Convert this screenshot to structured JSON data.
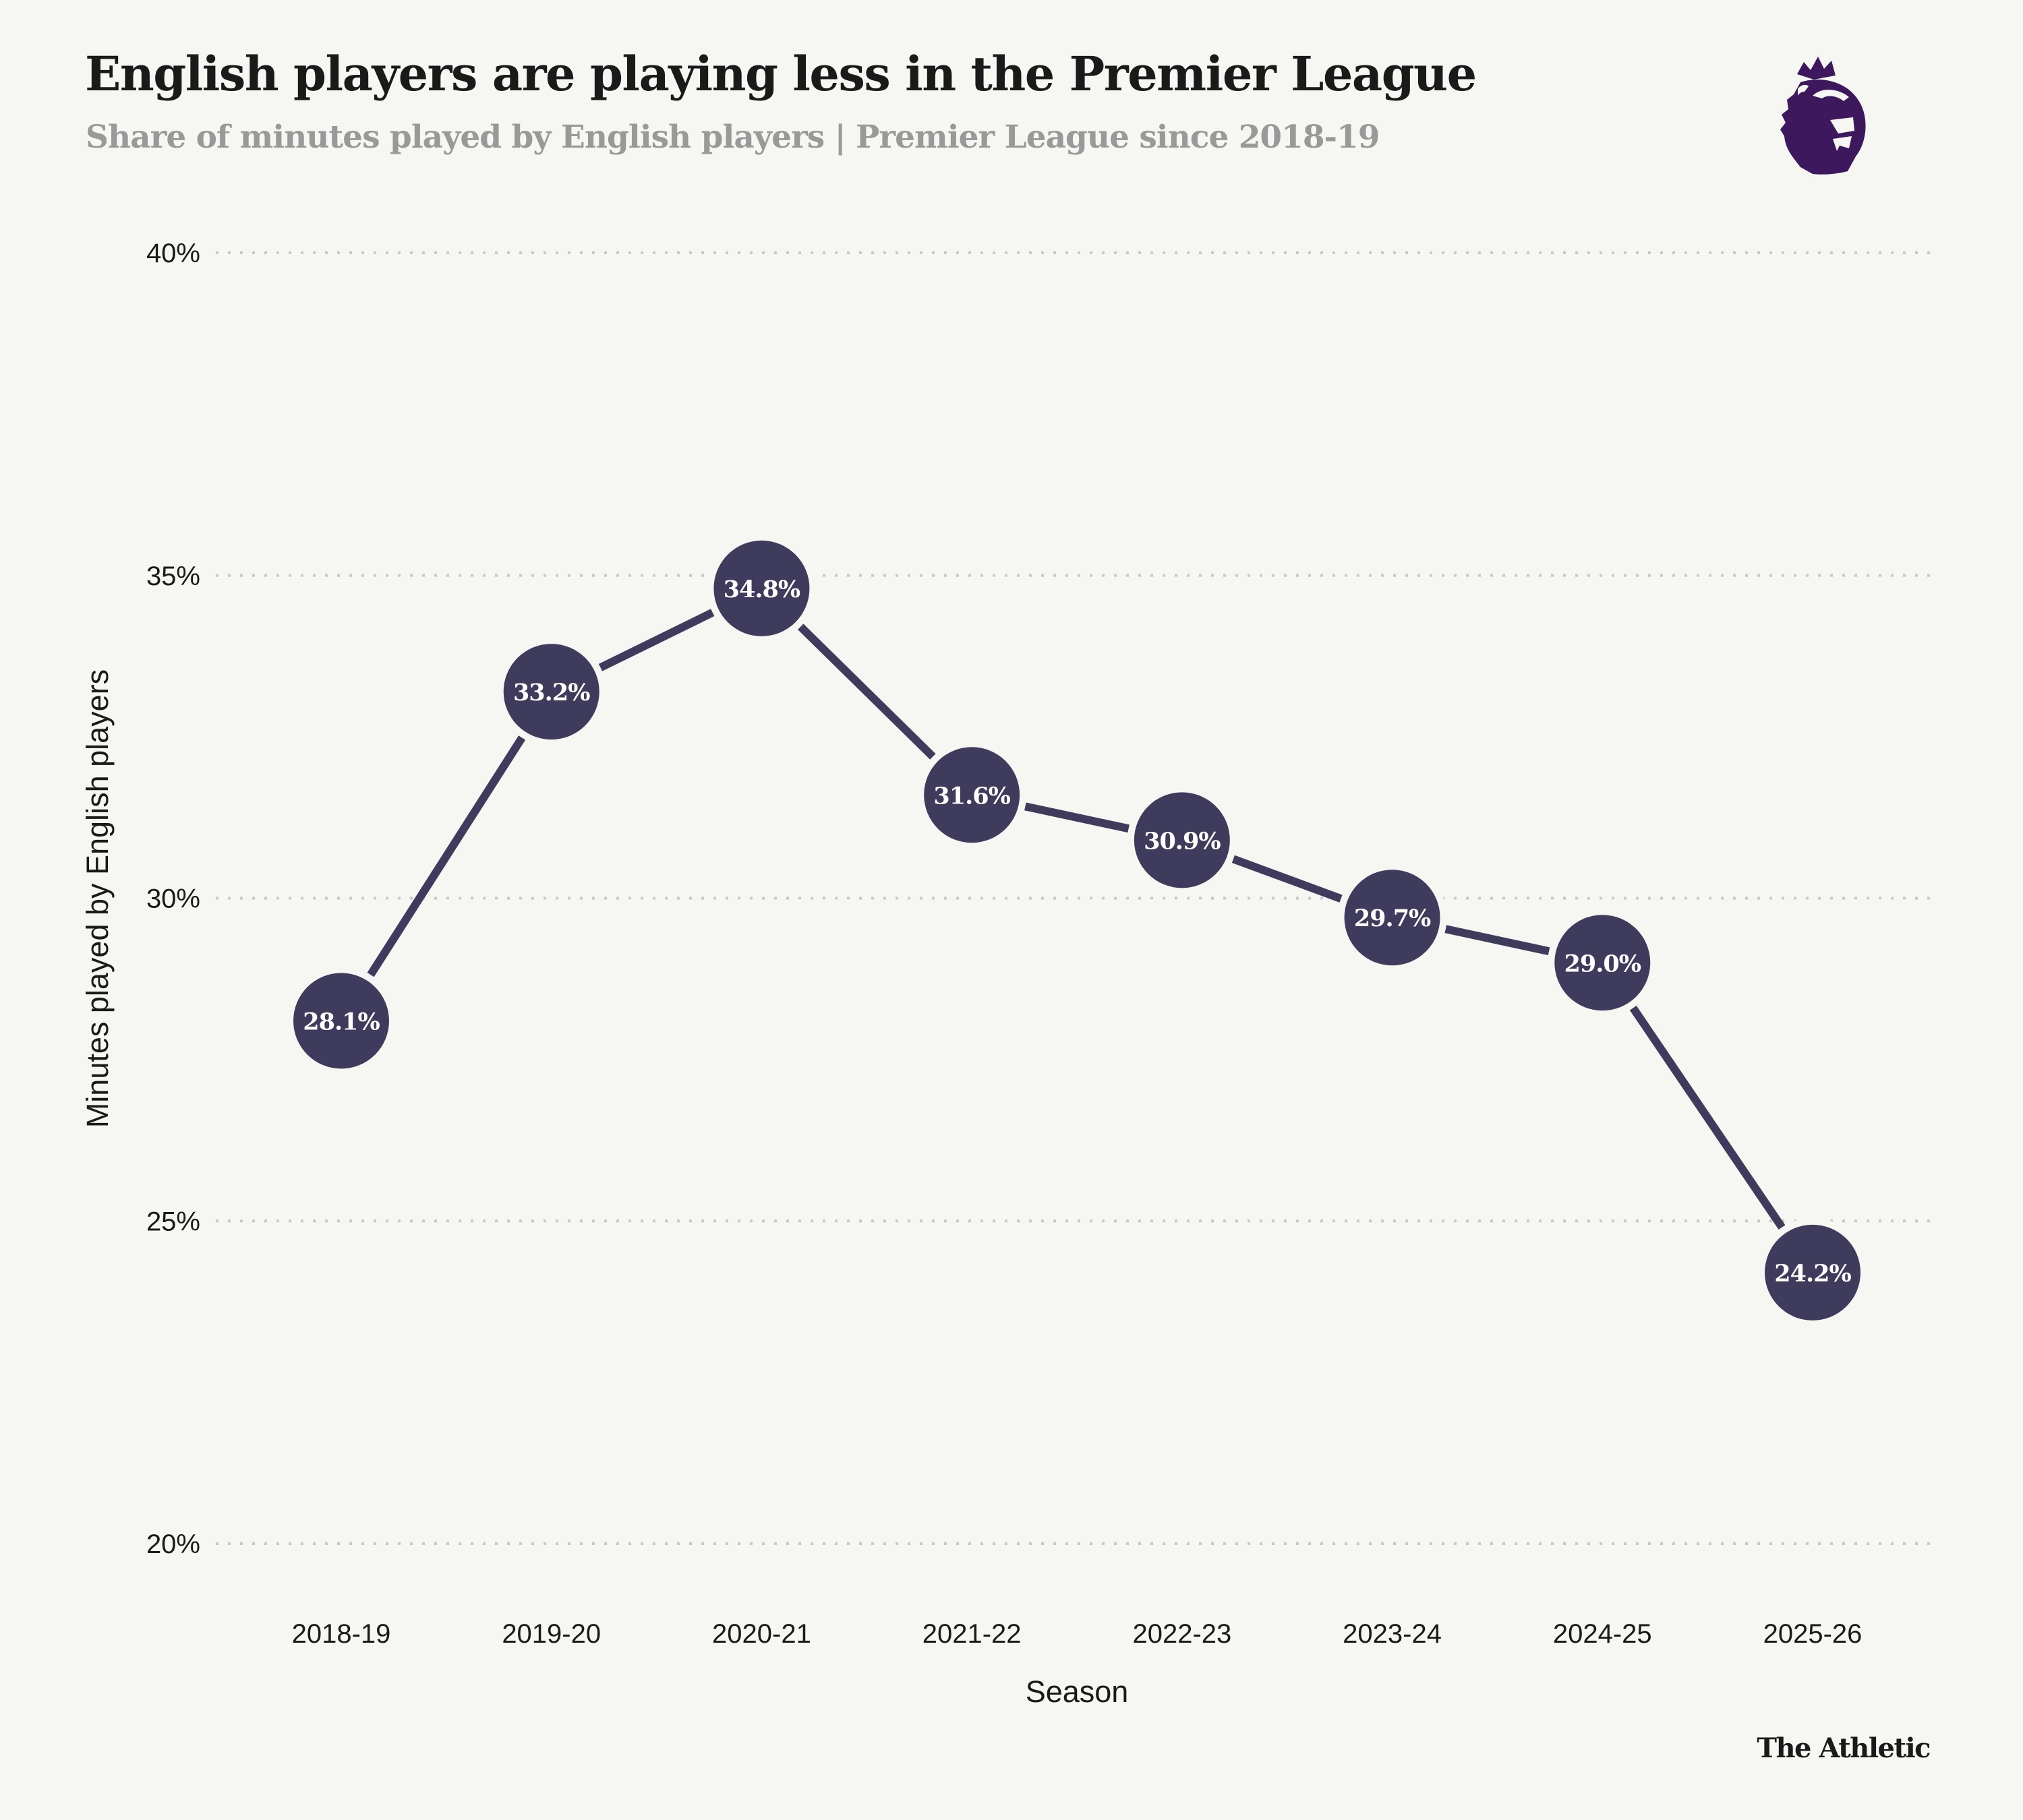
{
  "header": {
    "title": "English players are playing less in the Premier League",
    "subtitle": "Share of minutes played by English players | Premier League since 2018-19",
    "logo": "premier-league-lion-logo"
  },
  "footer": {
    "brand": "The Athletic"
  },
  "colors": {
    "background": "#f6f6f2",
    "series": "#3f3b5c",
    "gridline": "#c8c8c8",
    "text": "#1a1a1a",
    "subtitle": "#999999",
    "logo": "#3d185c",
    "point_label": "#ffffff"
  },
  "chart_data": {
    "type": "line",
    "title": "English players are playing less in the Premier League",
    "subtitle": "Share of minutes played by English players | Premier League since 2018-19",
    "xlabel": "Season",
    "ylabel": "Minutes played by English players",
    "categories": [
      "2018-19",
      "2019-20",
      "2020-21",
      "2021-22",
      "2022-23",
      "2023-24",
      "2024-25",
      "2025-26"
    ],
    "series": [
      {
        "name": "Share of minutes played by English players",
        "values": [
          28.1,
          33.2,
          34.8,
          31.6,
          30.9,
          29.7,
          29.0,
          24.2
        ],
        "labels": [
          "28.1%",
          "33.2%",
          "34.8%",
          "31.6%",
          "30.9%",
          "29.7%",
          "29.0%",
          "24.2%"
        ]
      }
    ],
    "ylim": [
      20,
      40
    ],
    "yticks": [
      20,
      25,
      30,
      35,
      40
    ],
    "ytick_labels": [
      "20%",
      "25%",
      "30%",
      "35%",
      "40%"
    ],
    "grid": "horizontal-dotted",
    "legend": "none",
    "markers": "filled-circles-with-value-labels"
  }
}
